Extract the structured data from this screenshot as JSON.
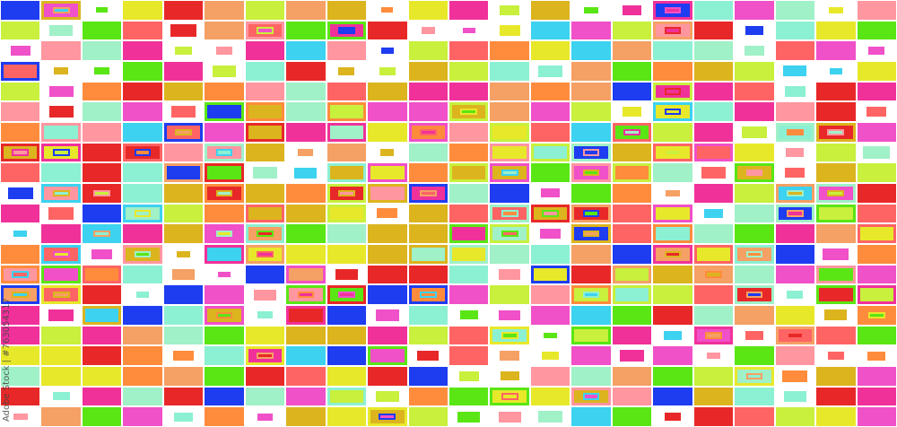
{
  "artwork": {
    "description_type": "abstract mosaic of colored rectangles",
    "palette": [
      "#f0319a",
      "#e8e82a",
      "#c8f03c",
      "#ff8c3c",
      "#1e3cf0",
      "#e82828",
      "#8cf0d2",
      "#3cd2f0",
      "#5ae614",
      "#dcb41e",
      "#ff96a0",
      "#f050c8",
      "#ff6464",
      "#a0f0c8",
      "#f5a064"
    ],
    "background": "#ffffff"
  },
  "watermark": {
    "credit": "Adobe Stock | #763054317"
  }
}
